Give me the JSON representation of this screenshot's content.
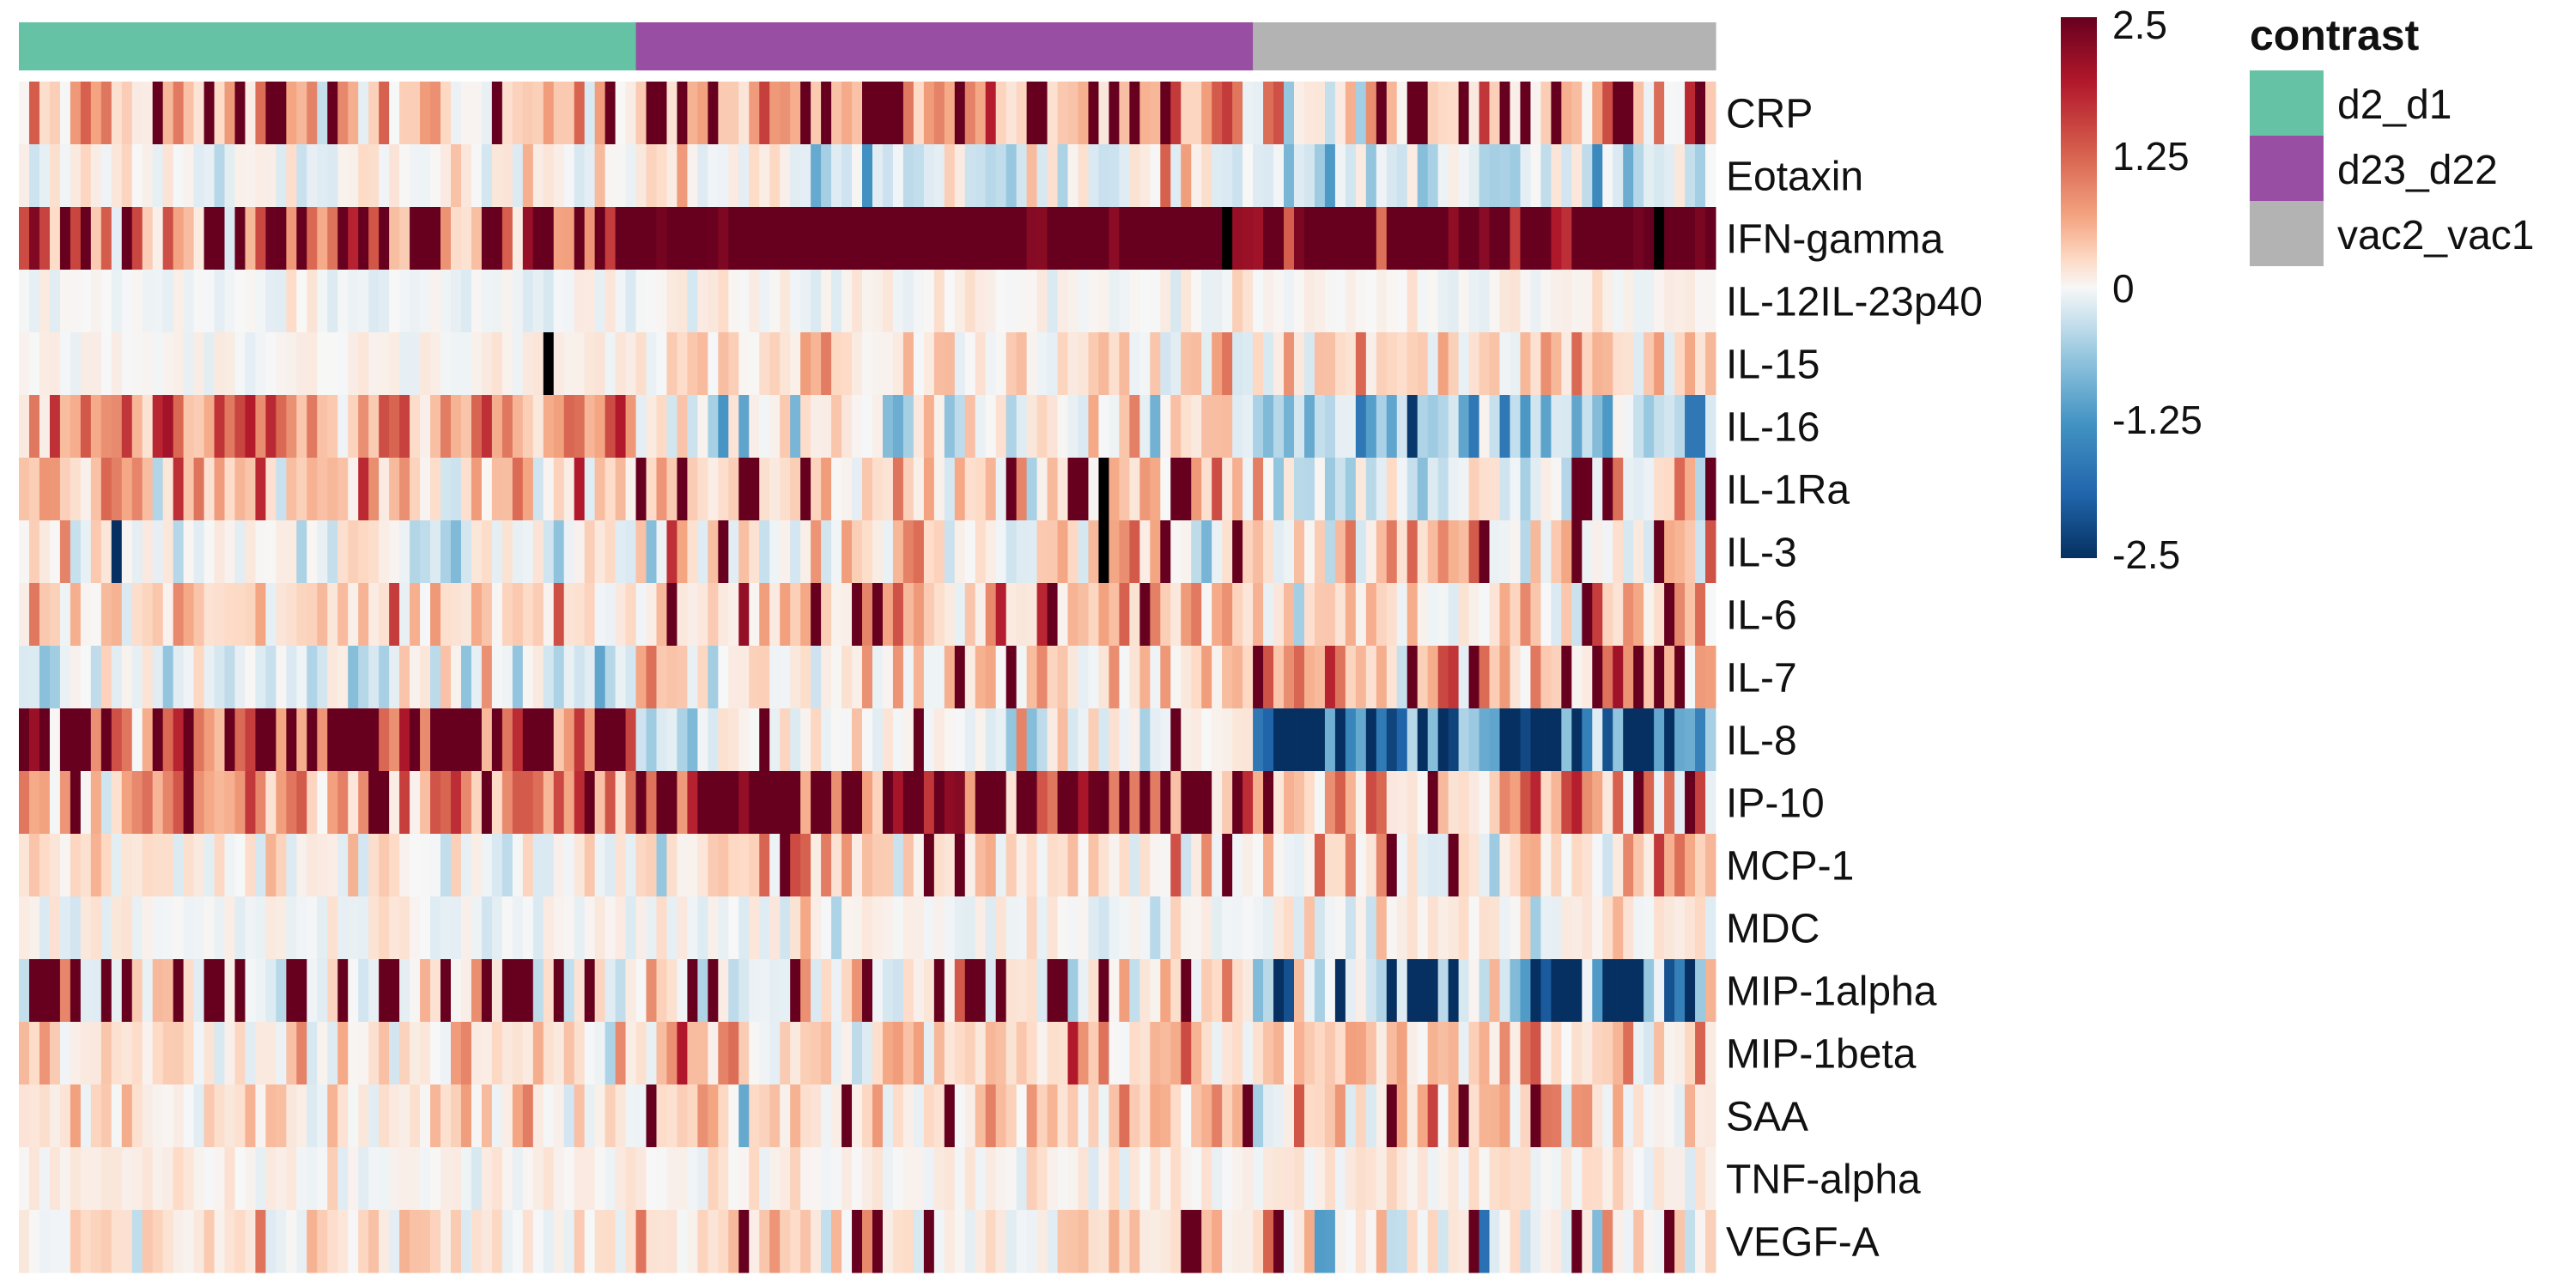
{
  "chart_data": {
    "type": "heatmap",
    "title": "",
    "xlabel": "",
    "ylabel": "",
    "rows": [
      "CRP",
      "Eotaxin",
      "IFN-gamma",
      "IL-12IL-23p40",
      "IL-15",
      "IL-16",
      "IL-1Ra",
      "IL-3",
      "IL-6",
      "IL-7",
      "IL-8",
      "IP-10",
      "MCP-1",
      "MDC",
      "MIP-1alpha",
      "MIP-1beta",
      "SAA",
      "TNF-alpha",
      "VEGF-A"
    ],
    "groups": [
      {
        "name": "d2_d1",
        "color": "#66C2A5",
        "n_columns": 60
      },
      {
        "name": "d23_d22",
        "color": "#984EA3",
        "n_columns": 60
      },
      {
        "name": "vac2_vac1",
        "color": "#B3B3B3",
        "n_columns": 45
      }
    ],
    "annotation_legend": {
      "title": "contrast"
    },
    "color_scale": {
      "min": -2.5,
      "max": 2.5,
      "low_color": "#053061",
      "mid_color": "#F7F7F7",
      "high_color": "#67001F",
      "ticks": [
        "2.5",
        "1.25",
        "0",
        "-1.25",
        "-2.5"
      ],
      "na_color": "#000000"
    },
    "row_profiles": {
      "CRP": [
        {
          "mean": 0.7,
          "sd": 0.6,
          "spike_p": 0.16,
          "spike_v": 2.5
        },
        {
          "mean": 0.8,
          "sd": 0.6,
          "spike_p": 0.3,
          "spike_v": 2.5
        },
        {
          "mean": 0.6,
          "sd": 0.8,
          "spike_p": 0.18,
          "spike_v": 2.5
        }
      ],
      "Eotaxin": [
        {
          "mean": 0.1,
          "sd": 0.3,
          "spike_p": 0.0,
          "spike_v": 0
        },
        {
          "mean": -0.1,
          "sd": 0.5,
          "spike_p": 0.02,
          "spike_v": 1.5
        },
        {
          "mean": -0.4,
          "sd": 0.5,
          "spike_p": 0.0,
          "spike_v": 0
        }
      ],
      "IFN-gamma": [
        {
          "mean": 1.2,
          "sd": 0.7,
          "spike_p": 0.22,
          "spike_v": 2.5
        },
        {
          "mean": 2.4,
          "sd": 0.3,
          "spike_p": 0.75,
          "spike_v": 2.5
        },
        {
          "mean": 2.3,
          "sd": 0.4,
          "spike_p": 0.7,
          "spike_v": 2.5
        }
      ],
      "IL-12IL-23p40": [
        {
          "mean": -0.1,
          "sd": 0.2,
          "spike_p": 0.0,
          "spike_v": 0
        },
        {
          "mean": 0.05,
          "sd": 0.25,
          "spike_p": 0.0,
          "spike_v": 0
        },
        {
          "mean": 0.05,
          "sd": 0.2,
          "spike_p": 0.0,
          "spike_v": 0
        }
      ],
      "IL-15": [
        {
          "mean": 0.1,
          "sd": 0.15,
          "spike_p": 0.0,
          "spike_v": 0
        },
        {
          "mean": 0.4,
          "sd": 0.4,
          "spike_p": 0.0,
          "spike_v": 0
        },
        {
          "mean": 0.6,
          "sd": 0.5,
          "spike_p": 0.06,
          "spike_v": 2.0
        }
      ],
      "IL-16": [
        {
          "mean": 1.1,
          "sd": 0.5,
          "spike_p": 0.05,
          "spike_v": 2.0
        },
        {
          "mean": 0.0,
          "sd": 0.6,
          "spike_p": 0.0,
          "spike_v": 0
        },
        {
          "mean": -0.7,
          "sd": 0.6,
          "spike_p": 0.08,
          "spike_v": -1.8
        }
      ],
      "IL-1Ra": [
        {
          "mean": 0.7,
          "sd": 0.5,
          "spike_p": 0.03,
          "spike_v": 2.5
        },
        {
          "mean": 0.6,
          "sd": 0.6,
          "spike_p": 0.1,
          "spike_v": 2.5
        },
        {
          "mean": 0.0,
          "sd": 0.6,
          "spike_p": 0.06,
          "spike_v": 2.5
        }
      ],
      "IL-3": [
        {
          "mean": 0.0,
          "sd": 0.45,
          "spike_p": 0.03,
          "spike_v": -2.5
        },
        {
          "mean": 0.3,
          "sd": 0.6,
          "spike_p": 0.05,
          "spike_v": 2.5
        },
        {
          "mean": 0.4,
          "sd": 0.7,
          "spike_p": 0.08,
          "spike_v": 2.5
        }
      ],
      "IL-6": [
        {
          "mean": 0.5,
          "sd": 0.4,
          "spike_p": 0.0,
          "spike_v": 0
        },
        {
          "mean": 0.6,
          "sd": 0.5,
          "spike_p": 0.08,
          "spike_v": 2.5
        },
        {
          "mean": 0.6,
          "sd": 0.5,
          "spike_p": 0.05,
          "spike_v": 2.5
        }
      ],
      "IL-7": [
        {
          "mean": -0.2,
          "sd": 0.5,
          "spike_p": 0.0,
          "spike_v": 0
        },
        {
          "mean": 0.4,
          "sd": 0.5,
          "spike_p": 0.05,
          "spike_v": 2.5
        },
        {
          "mean": 0.9,
          "sd": 0.6,
          "spike_p": 0.18,
          "spike_v": 2.5
        }
      ],
      "IL-8": [
        {
          "mean": 1.6,
          "sd": 0.9,
          "spike_p": 0.4,
          "spike_v": 2.5
        },
        {
          "mean": 0.0,
          "sd": 0.5,
          "spike_p": 0.05,
          "spike_v": 2.5
        },
        {
          "mean": -1.6,
          "sd": 0.9,
          "spike_p": 0.45,
          "spike_v": -2.5
        }
      ],
      "IP-10": [
        {
          "mean": 1.1,
          "sd": 0.6,
          "spike_p": 0.12,
          "spike_v": 2.5
        },
        {
          "mean": 1.7,
          "sd": 0.7,
          "spike_p": 0.4,
          "spike_v": 2.5
        },
        {
          "mean": 0.8,
          "sd": 0.7,
          "spike_p": 0.12,
          "spike_v": 2.5
        }
      ],
      "MCP-1": [
        {
          "mean": 0.2,
          "sd": 0.4,
          "spike_p": 0.0,
          "spike_v": 0
        },
        {
          "mean": 0.4,
          "sd": 0.5,
          "spike_p": 0.05,
          "spike_v": 2.5
        },
        {
          "mean": 0.4,
          "sd": 0.6,
          "spike_p": 0.08,
          "spike_v": 2.5
        }
      ],
      "MDC": [
        {
          "mean": 0.0,
          "sd": 0.25,
          "spike_p": 0.0,
          "spike_v": 0
        },
        {
          "mean": 0.0,
          "sd": 0.3,
          "spike_p": 0.0,
          "spike_v": 0
        },
        {
          "mean": 0.1,
          "sd": 0.4,
          "spike_p": 0.0,
          "spike_v": 0
        }
      ],
      "MIP-1alpha": [
        {
          "mean": 0.4,
          "sd": 0.5,
          "spike_p": 0.35,
          "spike_v": 2.5
        },
        {
          "mean": 0.2,
          "sd": 0.6,
          "spike_p": 0.35,
          "spike_v": 2.5
        },
        {
          "mean": -0.6,
          "sd": 0.8,
          "spike_p": 0.35,
          "spike_v": -2.5
        }
      ],
      "MIP-1beta": [
        {
          "mean": 0.3,
          "sd": 0.4,
          "spike_p": 0.0,
          "spike_v": 0
        },
        {
          "mean": 0.6,
          "sd": 0.5,
          "spike_p": 0.03,
          "spike_v": 2.0
        },
        {
          "mean": 0.5,
          "sd": 0.5,
          "spike_p": 0.03,
          "spike_v": 2.0
        }
      ],
      "SAA": [
        {
          "mean": 0.3,
          "sd": 0.4,
          "spike_p": 0.0,
          "spike_v": 0
        },
        {
          "mean": 0.5,
          "sd": 0.5,
          "spike_p": 0.05,
          "spike_v": 2.5
        },
        {
          "mean": 0.5,
          "sd": 0.6,
          "spike_p": 0.06,
          "spike_v": 2.5
        }
      ],
      "TNF-alpha": [
        {
          "mean": 0.1,
          "sd": 0.2,
          "spike_p": 0.0,
          "spike_v": 0
        },
        {
          "mean": 0.1,
          "sd": 0.25,
          "spike_p": 0.0,
          "spike_v": 0
        },
        {
          "mean": 0.2,
          "sd": 0.3,
          "spike_p": 0.0,
          "spike_v": 0
        }
      ],
      "VEGF-A": [
        {
          "mean": 0.3,
          "sd": 0.4,
          "spike_p": 0.0,
          "spike_v": 0
        },
        {
          "mean": 0.4,
          "sd": 0.5,
          "spike_p": 0.06,
          "spike_v": 2.5
        },
        {
          "mean": 0.2,
          "sd": 0.6,
          "spike_p": 0.06,
          "spike_v": 2.5
        }
      ]
    },
    "missing_cells": [
      {
        "row": "IFN-gamma",
        "col": 117
      },
      {
        "row": "IFN-gamma",
        "col": 159
      },
      {
        "row": "IL-15",
        "col": 51
      },
      {
        "row": "IL-1Ra",
        "col": 105
      },
      {
        "row": "IL-3",
        "col": 105
      }
    ],
    "grid": false
  }
}
